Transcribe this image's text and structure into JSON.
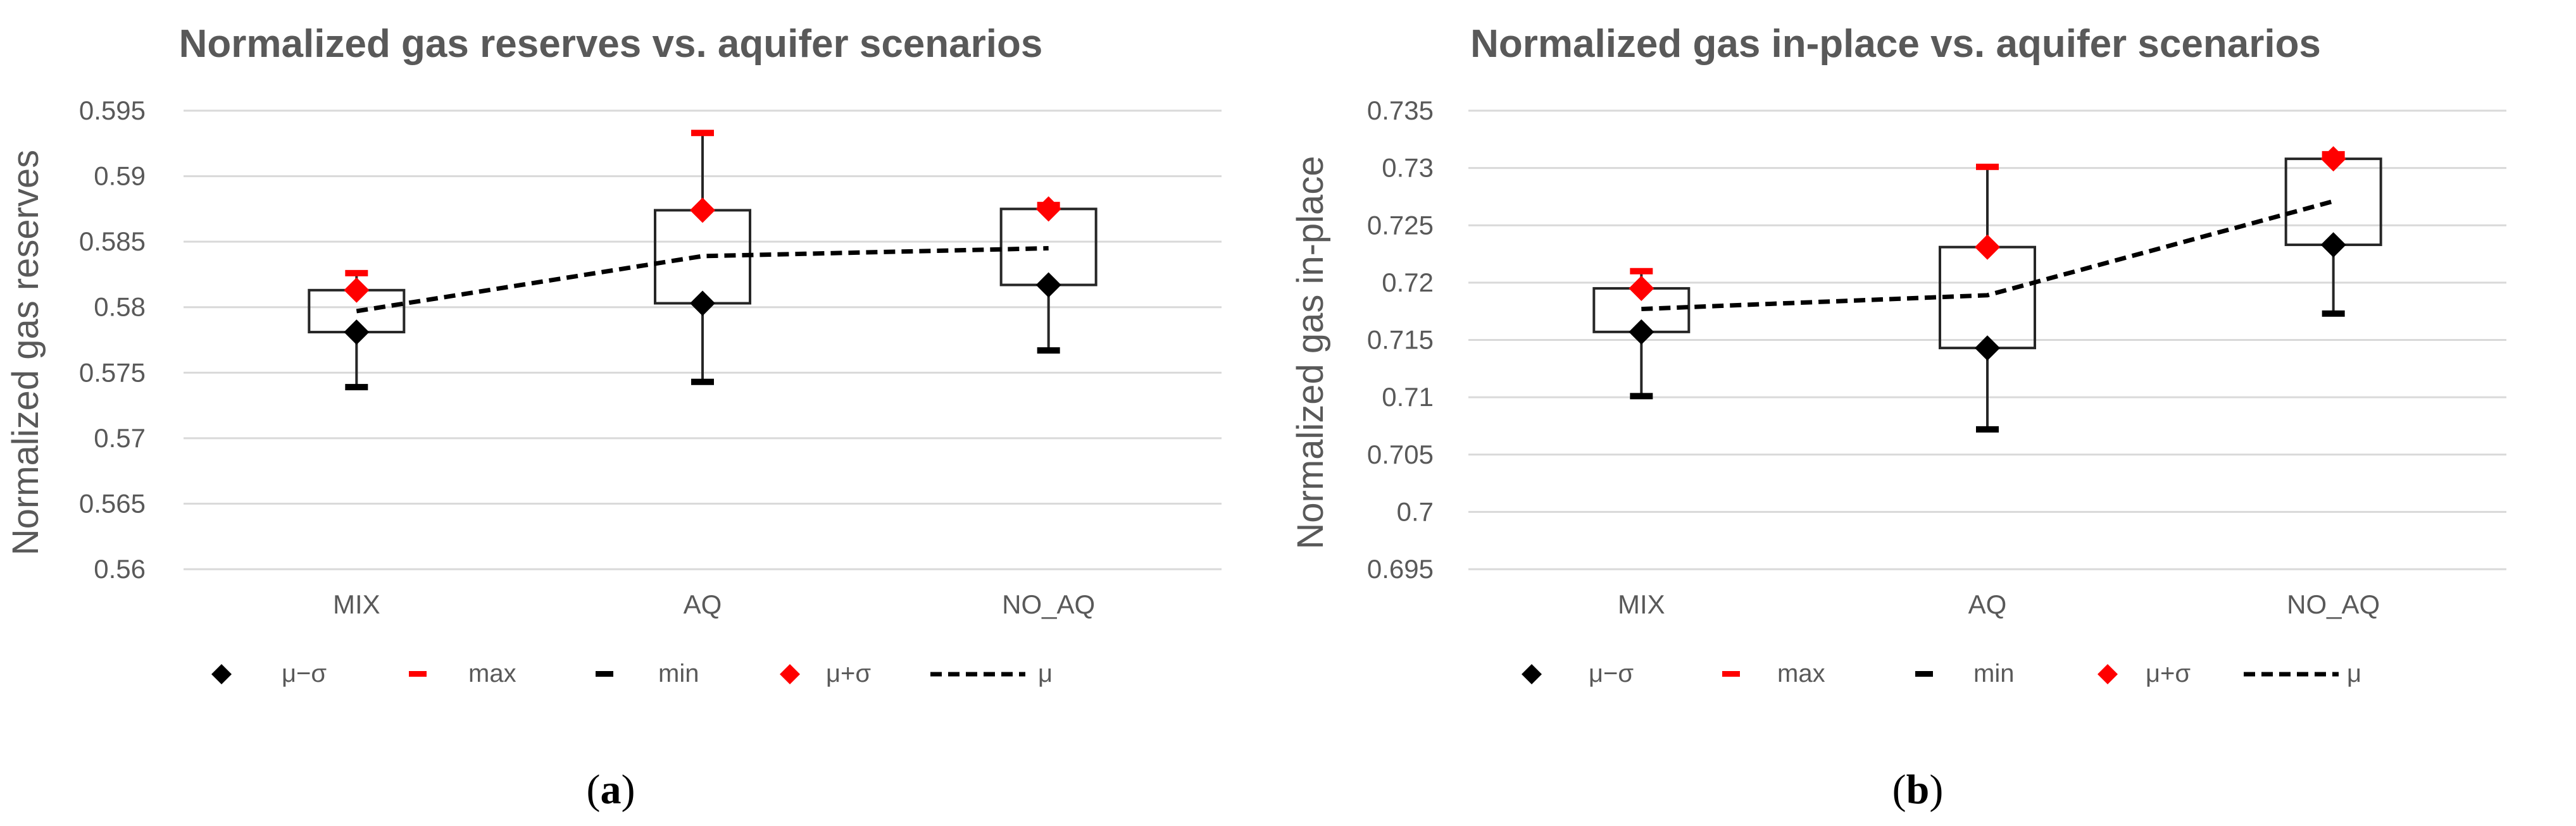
{
  "chart_data": [
    {
      "type": "box",
      "title": "Normalized gas reserves vs. aquifer scenarios",
      "xlabel": "",
      "ylabel": "Normalized gas reserves",
      "ylim": [
        0.56,
        0.595
      ],
      "yticks": [
        0.56,
        0.565,
        0.57,
        0.575,
        0.58,
        0.585,
        0.59,
        0.595
      ],
      "ytick_labels": [
        "0.56",
        "0.565",
        "0.57",
        "0.575",
        "0.58",
        "0.585",
        "0.59",
        "0.595"
      ],
      "categories": [
        "MIX",
        "AQ",
        "NO_AQ"
      ],
      "series": [
        {
          "name": "μ−σ",
          "values": [
            0.5781,
            0.5803,
            0.5817
          ]
        },
        {
          "name": "max",
          "values": [
            0.5826,
            0.5933,
            0.5878
          ]
        },
        {
          "name": "min",
          "values": [
            0.5739,
            0.5743,
            0.5767
          ]
        },
        {
          "name": "μ+σ",
          "values": [
            0.5813,
            0.5874,
            0.5875
          ]
        },
        {
          "name": "μ",
          "values": [
            0.5797,
            0.5839,
            0.5845
          ]
        }
      ],
      "grid": true,
      "legend_position": "bottom",
      "caption": "(a)"
    },
    {
      "type": "box",
      "title": "Normalized gas in-place vs. aquifer scenarios",
      "xlabel": "",
      "ylabel": "Normalized gas in-place",
      "ylim": [
        0.695,
        0.735
      ],
      "yticks": [
        0.695,
        0.7,
        0.705,
        0.71,
        0.715,
        0.72,
        0.725,
        0.73,
        0.735
      ],
      "ytick_labels": [
        "0.695",
        "0.7",
        "0.705",
        "0.71",
        "0.715",
        "0.72",
        "0.725",
        "0.73",
        "0.735"
      ],
      "categories": [
        "MIX",
        "AQ",
        "NO_AQ"
      ],
      "series": [
        {
          "name": "μ−σ",
          "values": [
            0.7157,
            0.7143,
            0.7233
          ]
        },
        {
          "name": "max",
          "values": [
            0.721,
            0.7301,
            0.7312
          ]
        },
        {
          "name": "min",
          "values": [
            0.7101,
            0.7072,
            0.7173
          ]
        },
        {
          "name": "μ+σ",
          "values": [
            0.7195,
            0.7231,
            0.7308
          ]
        },
        {
          "name": "μ",
          "values": [
            0.7177,
            0.7189,
            0.7271
          ]
        }
      ],
      "grid": true,
      "legend_position": "bottom",
      "caption": "(b)"
    }
  ],
  "colors": {
    "grid": "#d9d9d9",
    "box": "#595959",
    "text": "#595959",
    "red": "#ff0000",
    "black": "#000000",
    "background": "#ffffff"
  }
}
